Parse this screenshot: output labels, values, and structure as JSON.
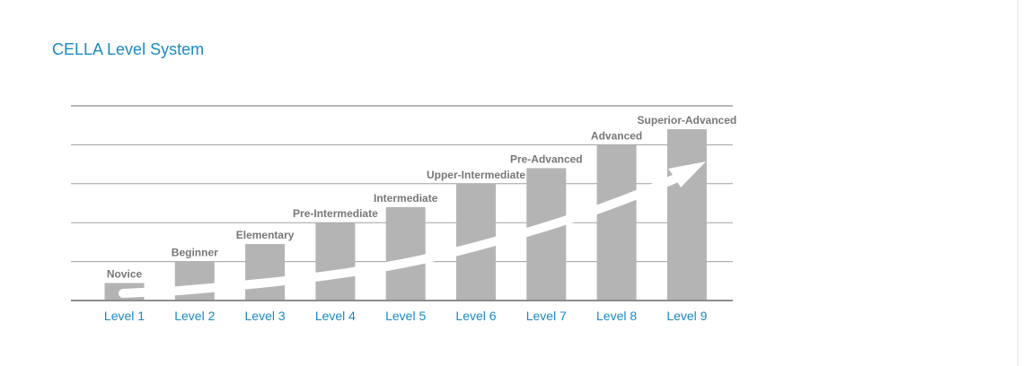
{
  "title": "CELLA Level System",
  "chart_data": {
    "type": "bar",
    "title": "CELLA Level System",
    "categories": [
      "Level 1",
      "Level 2",
      "Level 3",
      "Level 4",
      "Level 5",
      "Level 6",
      "Level 7",
      "Level 8",
      "Level 9"
    ],
    "bar_labels": [
      "Novice",
      "Beginner",
      "Elementary",
      "Pre-Intermediate",
      "Intermediate",
      "Upper-Intermediate",
      "Pre-Advanced",
      "Advanced",
      "Superior-Advanced"
    ],
    "values": [
      0.45,
      1.0,
      1.45,
      2.0,
      2.4,
      3.0,
      3.4,
      4.0,
      4.4
    ],
    "ylim": [
      0,
      5
    ],
    "grid": true,
    "y_axis_ticks_shown": false,
    "annotation": "upward arrow across bars",
    "colors": {
      "bar": "#b4b4b5",
      "category_label": "#1a8ac2",
      "bar_label": "#777777",
      "grid": "#a0a0a0",
      "arrow": "#ffffff"
    }
  }
}
